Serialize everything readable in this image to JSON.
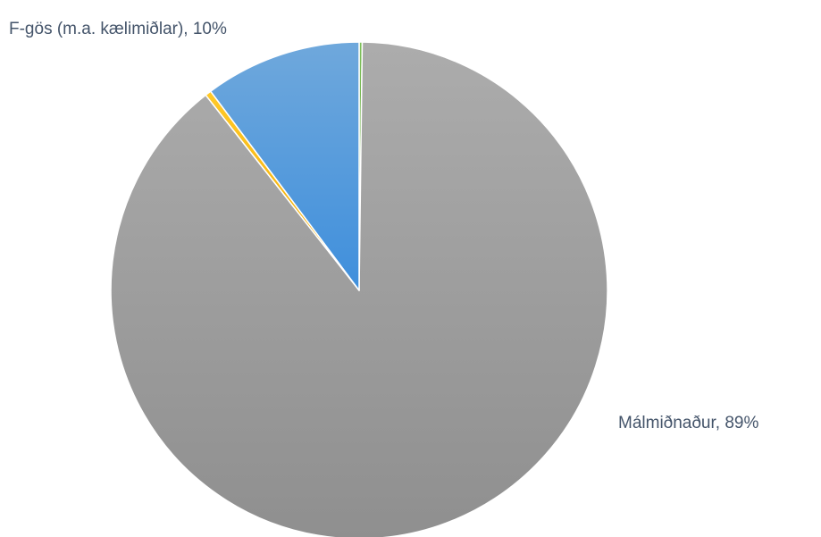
{
  "chart_data": {
    "type": "pie",
    "title": "",
    "slices": [
      {
        "label": "",
        "value": 0.2,
        "color": "#70ad47",
        "show_label": false
      },
      {
        "label": "Málmiðnaður",
        "value": 89.2,
        "color": "#a5a5a5",
        "show_label": true,
        "label_text": "Málmiðnaður, 89%"
      },
      {
        "label": "",
        "value": 0.4,
        "color": "#ffc000",
        "show_label": false
      },
      {
        "label": "F-gös (m.a. kælimiðlar)",
        "value": 10.2,
        "color": "#5b9bd5",
        "show_label": true,
        "label_text": "F-gös (m.a. kælimiðlar), 10%"
      }
    ],
    "start_angle": "top",
    "direction": "clockwise",
    "legend": "none"
  }
}
